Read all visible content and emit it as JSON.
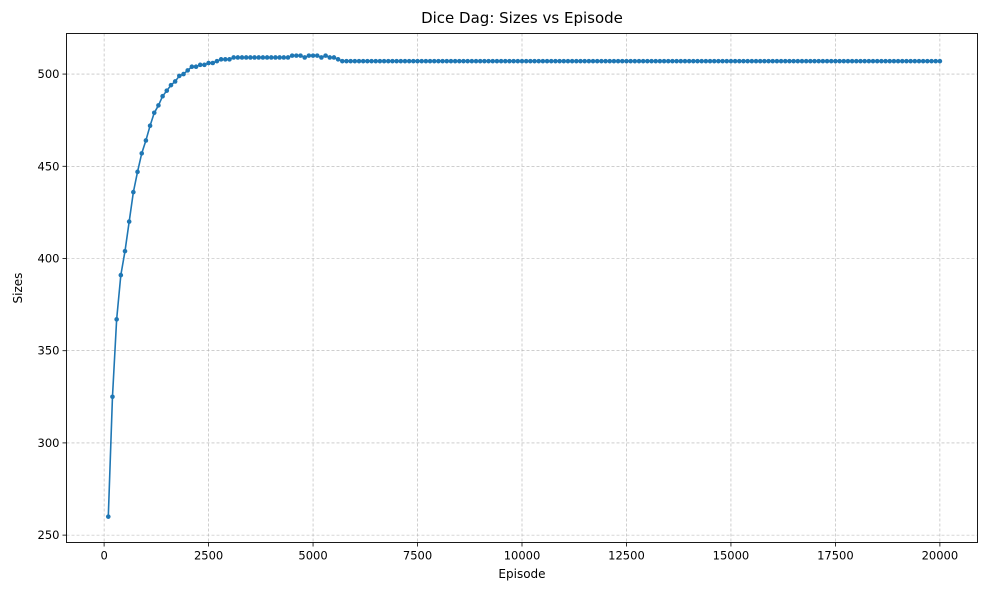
{
  "chart_data": {
    "type": "line",
    "title": "Dice Dag: Sizes vs Episode",
    "xlabel": "Episode",
    "ylabel": "Sizes",
    "xlim": [
      -900,
      20900
    ],
    "ylim": [
      246,
      522
    ],
    "xticks": [
      0,
      2500,
      5000,
      7500,
      10000,
      12500,
      15000,
      17500,
      20000
    ],
    "yticks": [
      250,
      300,
      350,
      400,
      450,
      500
    ],
    "xtick_labels": [
      "0",
      "2500",
      "5000",
      "7500",
      "10000",
      "12500",
      "15000",
      "17500",
      "20000"
    ],
    "ytick_labels": [
      "250",
      "300",
      "350",
      "400",
      "450",
      "500"
    ],
    "grid": true,
    "legend": "none",
    "series": [
      {
        "color": "#1f77b4",
        "marker": "circle",
        "x": [
          100,
          200,
          300,
          400,
          500,
          600,
          700,
          800,
          900,
          1000,
          1100,
          1200,
          1300,
          1400,
          1500,
          1600,
          1700,
          1800,
          1900,
          2000,
          2100,
          2200,
          2300,
          2400,
          2500,
          2600,
          2700,
          2800,
          2900,
          3000,
          3100,
          3200,
          3300,
          3400,
          3500,
          3600,
          3700,
          3800,
          3900,
          4000,
          4100,
          4200,
          4300,
          4400,
          4500,
          4600,
          4700,
          4800,
          4900,
          5000,
          5100,
          5200,
          5300,
          5400,
          5500,
          5600,
          5700,
          5800,
          5900,
          6000,
          6100,
          6200,
          6300,
          6400,
          6500,
          6600,
          6700,
          6800,
          6900,
          7000,
          7100,
          7200,
          7300,
          7400,
          7500,
          7600,
          7700,
          7800,
          7900,
          8000,
          8100,
          8200,
          8300,
          8400,
          8500,
          8600,
          8700,
          8800,
          8900,
          9000,
          9100,
          9200,
          9300,
          9400,
          9500,
          9600,
          9700,
          9800,
          9900,
          10000,
          10100,
          10200,
          10300,
          10400,
          10500,
          10600,
          10700,
          10800,
          10900,
          11000,
          11100,
          11200,
          11300,
          11400,
          11500,
          11600,
          11700,
          11800,
          11900,
          12000,
          12100,
          12200,
          12300,
          12400,
          12500,
          12600,
          12700,
          12800,
          12900,
          13000,
          13100,
          13200,
          13300,
          13400,
          13500,
          13600,
          13700,
          13800,
          13900,
          14000,
          14100,
          14200,
          14300,
          14400,
          14500,
          14600,
          14700,
          14800,
          14900,
          15000,
          15100,
          15200,
          15300,
          15400,
          15500,
          15600,
          15700,
          15800,
          15900,
          16000,
          16100,
          16200,
          16300,
          16400,
          16500,
          16600,
          16700,
          16800,
          16900,
          17000,
          17100,
          17200,
          17300,
          17400,
          17500,
          17600,
          17700,
          17800,
          17900,
          18000,
          18100,
          18200,
          18300,
          18400,
          18500,
          18600,
          18700,
          18800,
          18900,
          19000,
          19100,
          19200,
          19300,
          19400,
          19500,
          19600,
          19700,
          19800,
          19900,
          20000
        ],
        "y": [
          260,
          325,
          367,
          391,
          404,
          420,
          436,
          447,
          457,
          464,
          472,
          479,
          483,
          488,
          491,
          494,
          496,
          499,
          500,
          502,
          504,
          504,
          505,
          505,
          506,
          506,
          507,
          508,
          508,
          508,
          509,
          509,
          509,
          509,
          509,
          509,
          509,
          509,
          509,
          509,
          509,
          509,
          509,
          509,
          510,
          510,
          510,
          509,
          510,
          510,
          510,
          509,
          510,
          509,
          509,
          508,
          507,
          507,
          507,
          507,
          507,
          507,
          507,
          507,
          507,
          507,
          507,
          507,
          507,
          507,
          507,
          507,
          507,
          507,
          507,
          507,
          507,
          507,
          507,
          507,
          507,
          507,
          507,
          507,
          507,
          507,
          507,
          507,
          507,
          507,
          507,
          507,
          507,
          507,
          507,
          507,
          507,
          507,
          507,
          507,
          507,
          507,
          507,
          507,
          507,
          507,
          507,
          507,
          507,
          507,
          507,
          507,
          507,
          507,
          507,
          507,
          507,
          507,
          507,
          507,
          507,
          507,
          507,
          507,
          507,
          507,
          507,
          507,
          507,
          507,
          507,
          507,
          507,
          507,
          507,
          507,
          507,
          507,
          507,
          507,
          507,
          507,
          507,
          507,
          507,
          507,
          507,
          507,
          507,
          507,
          507,
          507,
          507,
          507,
          507,
          507,
          507,
          507,
          507,
          507,
          507,
          507,
          507,
          507,
          507,
          507,
          507,
          507,
          507,
          507,
          507,
          507,
          507,
          507,
          507,
          507,
          507,
          507,
          507,
          507,
          507,
          507,
          507,
          507,
          507,
          507,
          507,
          507,
          507,
          507,
          507,
          507,
          507,
          507,
          507,
          507,
          507,
          507,
          507,
          507
        ]
      }
    ]
  }
}
